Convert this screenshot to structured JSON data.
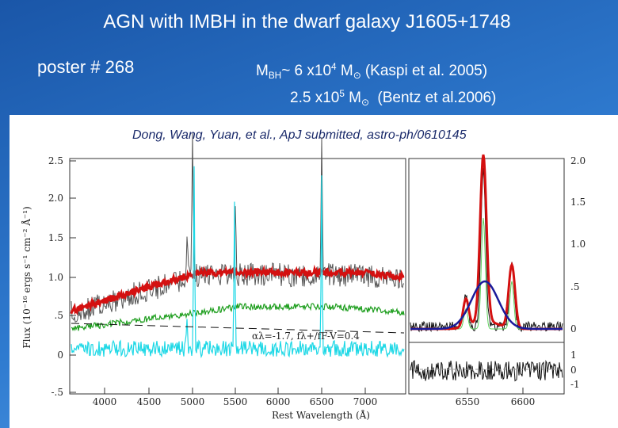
{
  "header": {
    "title": "AGN with IMBH in the dwarf galaxy J1605+1748",
    "poster": "poster # 268",
    "mass_lines": [
      [
        {
          "text": "M",
          "style": "normal"
        },
        {
          "text": "BH",
          "style": "sub"
        },
        {
          "text": "~ 6 x10",
          "style": "normal"
        },
        {
          "text": "4",
          "style": "sup"
        },
        {
          "text": " M",
          "style": "normal"
        },
        {
          "text": "⊙",
          "style": "sub"
        },
        {
          "text": " (Kaspi et al. 2005)",
          "style": "normal"
        }
      ],
      [
        {
          "text": "2.5 x10",
          "style": "normal"
        },
        {
          "text": "5",
          "style": "sup"
        },
        {
          "text": " M",
          "style": "normal"
        },
        {
          "text": "⊙",
          "style": "sub"
        },
        {
          "text": "  (Bentz et al.2006)",
          "style": "normal"
        }
      ]
    ]
  },
  "figure": {
    "citation": "Dong, Wang, Yuan, et al., ApJ submitted, astro-ph/0610145",
    "x_label": "Rest Wavelength (Å)",
    "y_label": "Flux (10⁻¹⁶ ergs s⁻¹ cm⁻² Å⁻¹)",
    "annotation": "αλ=-1.7, fλ+/fF-V=0.4",
    "left_y_ticks": [
      "2.5",
      "2.0",
      "1.5",
      "1.0",
      ".5",
      "0",
      "-.5"
    ],
    "left_x_ticks": [
      "4000",
      "4500",
      "5000",
      "5500",
      "6000",
      "6500",
      "7000"
    ],
    "right_x_ticks": [
      "6550",
      "6600"
    ],
    "right_y_ticks_top": [
      "2.0",
      "1.5",
      "1.0",
      ".5",
      "0"
    ],
    "right_y_ticks_bottom": [
      "1",
      "0",
      "-1"
    ]
  }
}
